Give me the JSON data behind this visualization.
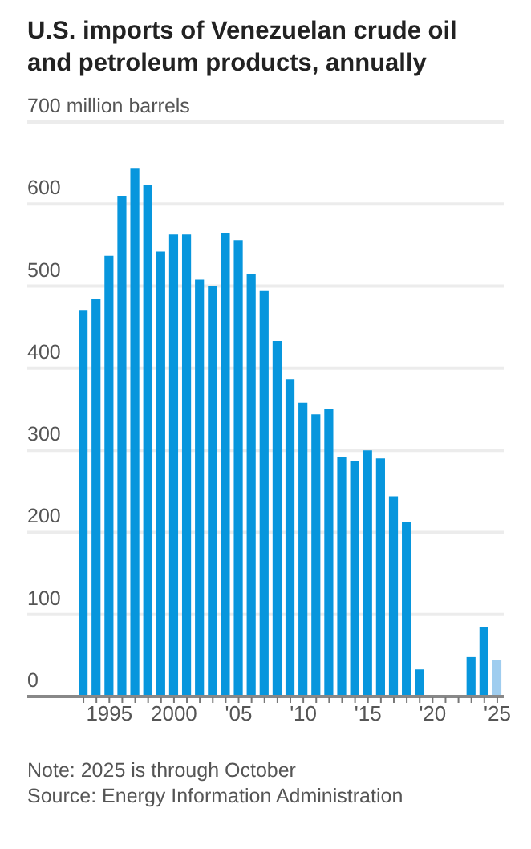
{
  "chart_data": {
    "type": "bar",
    "title": "U.S. imports of Venezuelan crude oil and petroleum products, annually",
    "categories": [
      null,
      null,
      "1995",
      null,
      null,
      null,
      null,
      "2000",
      null,
      null,
      null,
      null,
      "'05",
      null,
      null,
      null,
      null,
      "'10",
      null,
      null,
      null,
      null,
      "'15",
      null,
      null,
      null,
      null,
      "'20",
      null,
      null,
      null,
      null,
      "'25"
    ],
    "values": [
      471,
      485,
      537,
      610,
      644,
      623,
      542,
      563,
      563,
      508,
      500,
      565,
      556,
      515,
      494,
      433,
      387,
      358,
      344,
      350,
      292,
      287,
      300,
      290,
      244,
      213,
      33,
      0,
      0,
      0,
      48,
      85,
      44
    ],
    "colors": [
      "#0796dd",
      "#0796dd",
      "#0796dd",
      "#0796dd",
      "#0796dd",
      "#0796dd",
      "#0796dd",
      "#0796dd",
      "#0796dd",
      "#0796dd",
      "#0796dd",
      "#0796dd",
      "#0796dd",
      "#0796dd",
      "#0796dd",
      "#0796dd",
      "#0796dd",
      "#0796dd",
      "#0796dd",
      "#0796dd",
      "#0796dd",
      "#0796dd",
      "#0796dd",
      "#0796dd",
      "#0796dd",
      "#0796dd",
      "#0796dd",
      "#0796dd",
      "#0796dd",
      "#0796dd",
      "#0796dd",
      "#0796dd",
      "#9fcdef"
    ],
    "ylim": [
      0,
      700
    ],
    "yticks": [
      0,
      100,
      200,
      300,
      400,
      500,
      600,
      {
        "value": 700,
        "label": "700 million barrels"
      }
    ],
    "grid": "y",
    "annotations": [
      "Note: 2025 is through October",
      "Source: Energy Information Administration"
    ]
  }
}
